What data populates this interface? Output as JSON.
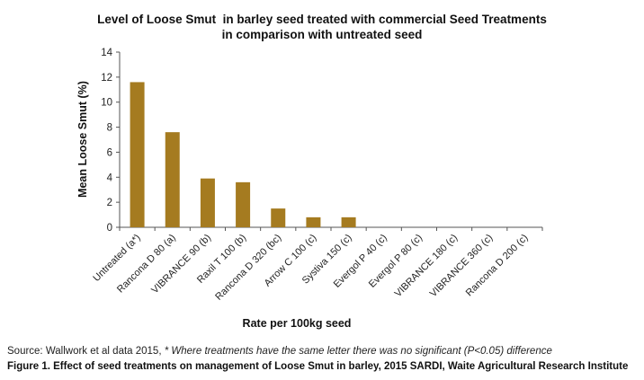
{
  "chart_data": {
    "type": "bar",
    "title_lines": [
      "Level of Loose Smut  in barley seed treated with commercial Seed Treatments",
      "in comparison with untreated seed"
    ],
    "xlabel": "Rate per 100kg seed",
    "ylabel": "Mean Loose Smut (%)",
    "ylim": [
      0,
      14
    ],
    "yticks": [
      "0",
      "2",
      "4",
      "6",
      "8",
      "10",
      "12",
      "14"
    ],
    "grid": false,
    "bar_color": "#a57b20",
    "categories": [
      "Untreated (a*)",
      "Rancona D 80 (a)",
      "VIBRANCE 90 (b)",
      "Raxil T 100 (b)",
      "Rancona D 320 (bc)",
      "Arrow C 100 (c)",
      "Systiva 150 (c)",
      "Evergol P 40 (c)",
      "Evergol P 80 (c)",
      "VIBRANCE 180 (c)",
      "VIBRANCE 360 (c)",
      "Rancona D 200 (c)"
    ],
    "values": [
      11.6,
      7.6,
      3.9,
      3.6,
      1.5,
      0.8,
      0.8,
      0,
      0,
      0,
      0,
      0
    ]
  },
  "footer": {
    "source_prefix": "Source: Wallwork et al data 2015, ",
    "source_italic": "* Where treatments have the same letter there was no significant (P<0.05) difference",
    "caption": "Figure 1. Effect of seed treatments on management of Loose Smut in barley, 2015 SARDI, Waite Agricultural Research Institute"
  }
}
